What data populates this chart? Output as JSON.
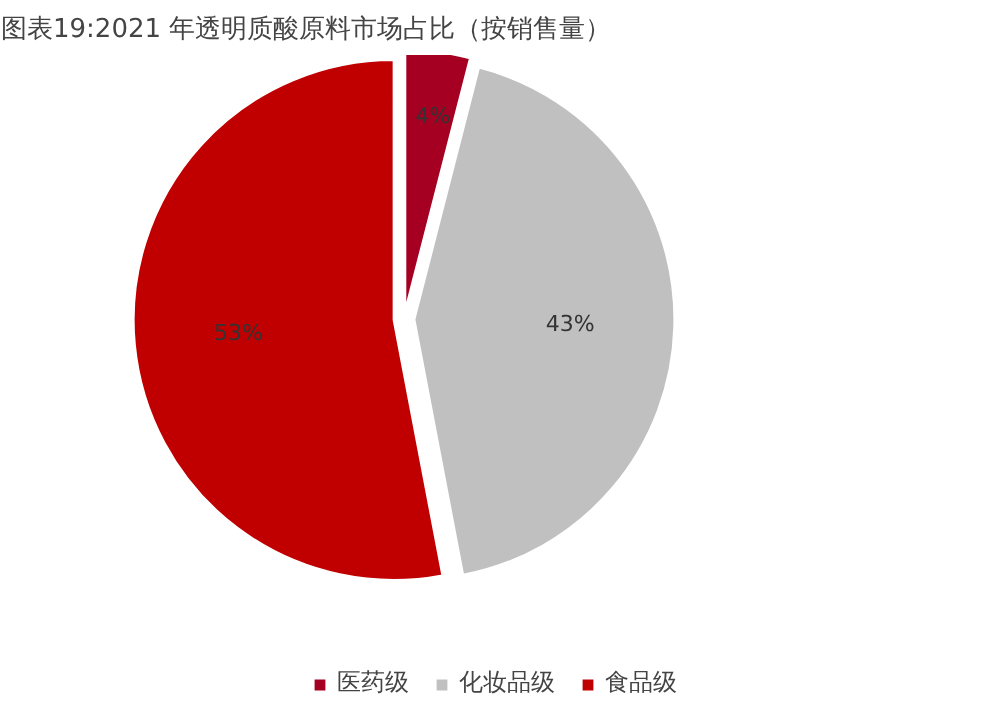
{
  "chart_data": {
    "type": "pie",
    "title": "图表19:2021 年透明质酸原料市场占比（按销售量）",
    "categories": [
      "医药级",
      "化妆品级",
      "食品级"
    ],
    "values": [
      4,
      43,
      53
    ],
    "value_labels": [
      "4%",
      "43%",
      "53%"
    ],
    "colors": [
      "#a50021",
      "#c0c0c0",
      "#c00000"
    ],
    "legend": "bottom"
  }
}
